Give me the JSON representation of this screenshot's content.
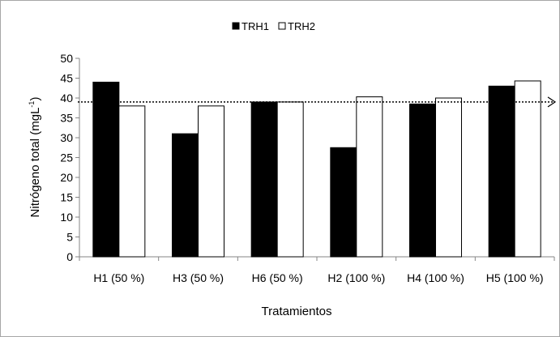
{
  "chart_data": {
    "type": "bar",
    "xlabel": "Tratamientos",
    "ylabel_main": "Nitrógeno total (mgL",
    "ylabel_sup": "-1",
    "ylabel_close": ")",
    "ylim": [
      0,
      50
    ],
    "yticks": [
      0,
      5,
      10,
      15,
      20,
      25,
      30,
      35,
      40,
      45,
      50
    ],
    "grid": false,
    "legend": "top",
    "categories": [
      "H1 (50 %)",
      "H3 (50 %)",
      "H6 (50 %)",
      "H2 (100 %)",
      "H4 (100 %)",
      "H5 (100 %)"
    ],
    "series": [
      {
        "name": "TRH1",
        "color": "#000000",
        "values": [
          44,
          31,
          39,
          27.5,
          38.5,
          43
        ]
      },
      {
        "name": "TRH2",
        "color": "#ffffff",
        "values": [
          38,
          38,
          39,
          40.3,
          40,
          44.3
        ]
      }
    ],
    "reference_line": {
      "value": 39,
      "style": "dotted",
      "arrow": true
    }
  }
}
